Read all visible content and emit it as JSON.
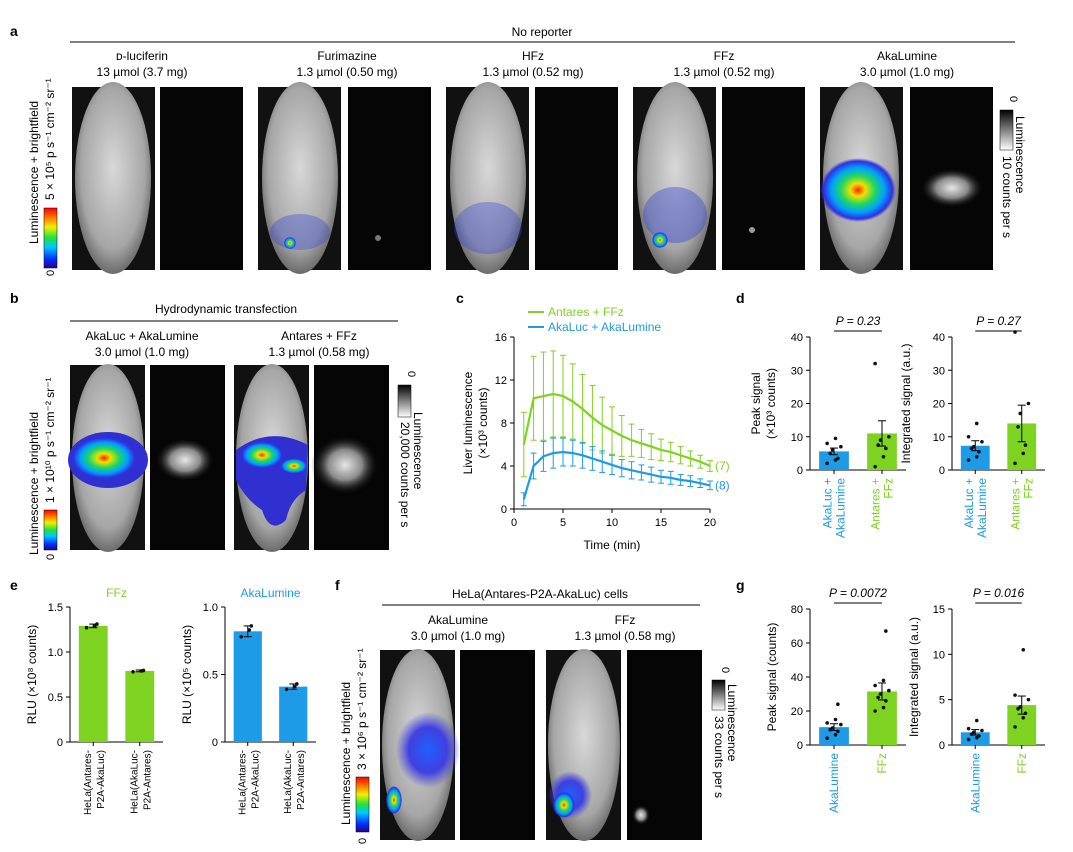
{
  "colors": {
    "green": "#7ed321",
    "blue": "#1e9be6",
    "dot": "#111111",
    "errbar": "#000000"
  },
  "panel_a": {
    "letter": "a",
    "header": "No reporter",
    "columns": [
      {
        "name": "ᴅ-luciferin",
        "dose": "13 µmol (3.7 mg)"
      },
      {
        "name": "Furimazine",
        "dose": "1.3 µmol (0.50 mg)"
      },
      {
        "name": "HFz",
        "dose": "1.3 µmol (0.52 mg)"
      },
      {
        "name": "FFz",
        "dose": "1.3 µmol (0.52 mg)"
      },
      {
        "name": "AkaLumine",
        "dose": "3.0 µmol (1.0 mg)"
      }
    ],
    "ylabel": "Luminescence + brightfield",
    "colorbar_label": "5 × 10⁵ p s⁻¹ cm⁻² sr⁻¹",
    "colorbar_min": "0",
    "gray_label_1": "Luminescence",
    "gray_label_2": "10 counts per s",
    "gray_min": "0"
  },
  "panel_b": {
    "letter": "b",
    "header": "Hydrodynamic transfection",
    "columns": [
      {
        "name": "AkaLuc + AkaLumine",
        "dose": "3.0 µmol (1.0 mg)"
      },
      {
        "name": "Antares + FFz",
        "dose": "1.3 µmol (0.58 mg)"
      }
    ],
    "ylabel": "Luminescence + brightfield",
    "colorbar_label": "1 × 10¹⁰ p s⁻¹ cm⁻² sr⁻¹",
    "colorbar_min": "0",
    "gray_label_1": "Luminescence",
    "gray_label_2": "20,000 counts per s",
    "gray_min": "0"
  },
  "panel_f": {
    "letter": "f",
    "header": "HeLa(Antares-P2A-AkaLuc) cells",
    "columns": [
      {
        "name": "AkaLumine",
        "dose": "3.0 µmol (1.0 mg)"
      },
      {
        "name": "FFz",
        "dose": "1.3 µmol (0.58 mg)"
      }
    ],
    "ylabel": "Luminescence + brightfield",
    "colorbar_label": "3 × 10⁶ p s⁻¹ cm⁻² sr⁻¹",
    "colorbar_min": "0",
    "gray_label_1": "Luminescence",
    "gray_label_2": "33 counts per s",
    "gray_min": "0"
  },
  "chart_data": [
    {
      "id": "c",
      "letter": "c",
      "type": "line",
      "xlabel": "Time (min)",
      "ylabel_1": "Liver luminescence",
      "ylabel_2": "(×10³ counts)",
      "xlim": [
        0,
        20
      ],
      "ylim": [
        0,
        16
      ],
      "xticks": [
        "0",
        "5",
        "10",
        "15",
        "20"
      ],
      "yticks": [
        "0",
        "4",
        "8",
        "12",
        "16"
      ],
      "x": [
        1,
        2,
        3,
        4,
        5,
        6,
        7,
        8,
        9,
        10,
        11,
        12,
        13,
        14,
        15,
        16,
        17,
        18,
        19,
        20
      ],
      "series": [
        {
          "name": "Antares + FFz",
          "color": "green",
          "n_label": "(7)",
          "values": [
            6.0,
            10.3,
            10.5,
            10.7,
            10.5,
            10.0,
            9.3,
            8.5,
            7.8,
            7.3,
            6.8,
            6.4,
            6.1,
            5.8,
            5.5,
            5.3,
            5.0,
            4.7,
            4.4,
            4.0
          ],
          "errors": [
            3.0,
            3.9,
            4.1,
            4.0,
            3.8,
            3.5,
            3.2,
            3.0,
            2.6,
            2.2,
            1.9,
            1.5,
            1.3,
            1.2,
            1.0,
            0.9,
            0.8,
            0.7,
            0.6,
            0.5
          ]
        },
        {
          "name": "AkaLuc + AkaLumine",
          "color": "blue",
          "n_label": "(8)",
          "values": [
            0.9,
            4.0,
            4.9,
            5.2,
            5.3,
            5.2,
            5.0,
            4.7,
            4.4,
            4.1,
            3.8,
            3.6,
            3.4,
            3.2,
            3.0,
            2.9,
            2.7,
            2.6,
            2.4,
            2.2
          ],
          "errors": [
            0.6,
            1.2,
            1.4,
            1.4,
            1.3,
            1.2,
            1.2,
            1.1,
            1.0,
            0.9,
            0.8,
            0.8,
            0.7,
            0.7,
            0.6,
            0.6,
            0.5,
            0.5,
            0.4,
            0.4
          ]
        }
      ]
    },
    {
      "id": "d1",
      "letter": "d",
      "type": "bar",
      "ylabel_1": "Peak signal",
      "ylabel_2": "(×10³ counts)",
      "ylim": [
        0,
        40
      ],
      "yticks": [
        "0",
        "10",
        "20",
        "30",
        "40"
      ],
      "p_label": "P = 0.23",
      "categories": [
        "AkaLuc + AkaLumine",
        "Antares + FFz"
      ],
      "cat_lines": [
        [
          "AkaLuc +",
          "AkaLumine"
        ],
        [
          "Antares +",
          "FFz"
        ]
      ],
      "cat_colors": [
        "blue",
        "green"
      ],
      "values": [
        5.6,
        11.0
      ],
      "errors": [
        1.0,
        3.8
      ],
      "points": [
        [
          2.0,
          3.0,
          3.5,
          5.0,
          6.0,
          7.0,
          8.0,
          9.5
        ],
        [
          1.0,
          4.0,
          6.5,
          7.5,
          9.0,
          10.0,
          32.0
        ]
      ]
    },
    {
      "id": "d2",
      "type": "bar",
      "ylabel_1": "Integrated signal (a.u.)",
      "ylabel_2": "",
      "ylim": [
        0,
        40
      ],
      "yticks": [
        "0",
        "10",
        "20",
        "30",
        "40"
      ],
      "p_label": "P = 0.27",
      "categories": [
        "AkaLuc + AkaLumine",
        "Antares + FFz"
      ],
      "cat_lines": [
        [
          "AkaLuc +",
          "AkaLumine"
        ],
        [
          "Antares +",
          "FFz"
        ]
      ],
      "cat_colors": [
        "blue",
        "green"
      ],
      "values": [
        7.3,
        14.0
      ],
      "errors": [
        1.5,
        5.5
      ],
      "points": [
        [
          3.0,
          4.0,
          5.5,
          6.5,
          7.0,
          8.5,
          10.0,
          14.0
        ],
        [
          2.0,
          5.0,
          7.5,
          13.0,
          17.0,
          20.0,
          41.5
        ]
      ]
    },
    {
      "id": "e1",
      "letter": "e",
      "type": "bar",
      "title": "FFz",
      "title_color": "green",
      "ylabel_1": "RLU (×10⁸ counts)",
      "ylabel_2": "",
      "ylim": [
        0,
        1.5
      ],
      "yticks": [
        "0",
        "0.5",
        "1.0",
        "1.5"
      ],
      "categories": [
        "HeLa(Antares-P2A-AkaLuc)",
        "HeLa(AkaLuc-P2A-Antares)"
      ],
      "cat_lines": [
        [
          "HeLa(Antares-",
          "P2A-AkaLuc)"
        ],
        [
          "HeLa(AkaLuc-",
          "P2A-Antares)"
        ]
      ],
      "cat_colors": [
        "green",
        "green"
      ],
      "values": [
        1.29,
        0.79
      ],
      "errors": [
        0.02,
        0.01
      ],
      "points": [
        [
          1.27,
          1.29,
          1.31
        ],
        [
          0.78,
          0.79,
          0.795
        ]
      ]
    },
    {
      "id": "e2",
      "type": "bar",
      "title": "AkaLumine",
      "title_color": "blue",
      "ylabel_1": "RLU (×10⁵ counts)",
      "ylabel_2": "",
      "ylim": [
        0,
        1.0
      ],
      "yticks": [
        "0",
        "0.5",
        "1.0"
      ],
      "categories": [
        "HeLa(Antares-P2A-AkaLuc)",
        "HeLa(AkaLuc-P2A-Antares)"
      ],
      "cat_lines": [
        [
          "HeLa(Antares-",
          "P2A-AkaLuc)"
        ],
        [
          "HeLa(AkaLuc-",
          "P2A-Antares)"
        ]
      ],
      "cat_colors": [
        "blue",
        "blue"
      ],
      "values": [
        0.82,
        0.41
      ],
      "errors": [
        0.04,
        0.02
      ],
      "points": [
        [
          0.78,
          0.83,
          0.86
        ],
        [
          0.39,
          0.41,
          0.43
        ]
      ]
    },
    {
      "id": "g1",
      "letter": "g",
      "type": "bar",
      "ylabel_1": "Peak signal (counts)",
      "ylabel_2": "",
      "ylim": [
        0,
        80
      ],
      "yticks": [
        "0",
        "20",
        "40",
        "60",
        "80"
      ],
      "p_label": "P = 0.0072",
      "categories": [
        "AkaLumine",
        "FFz"
      ],
      "cat_lines": [
        [
          "AkaLumine"
        ],
        [
          "FFz"
        ]
      ],
      "cat_colors": [
        "blue",
        "green"
      ],
      "values": [
        10.5,
        31.5
      ],
      "errors": [
        2.0,
        5.0
      ],
      "points": [
        [
          4.0,
          6.0,
          8.0,
          9.0,
          10.0,
          12.0,
          13.0,
          15.0,
          24.0
        ],
        [
          20.0,
          22.0,
          26.0,
          28.0,
          30.0,
          32.0,
          35.0,
          38.0,
          67.0
        ]
      ]
    },
    {
      "id": "g2",
      "type": "bar",
      "ylabel_1": "Integrated signal (a.u.)",
      "ylabel_2": "",
      "ylim": [
        0,
        15
      ],
      "yticks": [
        "0",
        "5",
        "10",
        "15"
      ],
      "p_label": "P = 0.016",
      "categories": [
        "AkaLumine",
        "FFz"
      ],
      "cat_lines": [
        [
          "AkaLumine"
        ],
        [
          "FFz"
        ]
      ],
      "cat_colors": [
        "blue",
        "green"
      ],
      "values": [
        1.4,
        4.4
      ],
      "errors": [
        0.3,
        1.0
      ],
      "points": [
        [
          0.6,
          0.8,
          1.0,
          1.2,
          1.4,
          1.6,
          1.8,
          2.7
        ],
        [
          2.0,
          3.0,
          3.5,
          4.0,
          4.2,
          5.0,
          5.5,
          10.5
        ]
      ]
    }
  ]
}
